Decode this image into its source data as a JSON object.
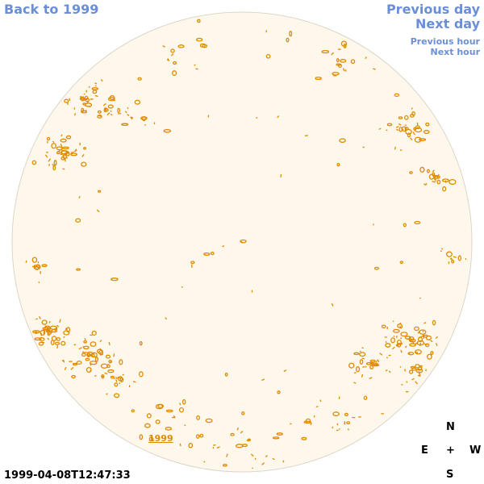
{
  "navigation": {
    "back_label": "Back to 1999",
    "previous_day_label": "Previous day",
    "next_day_label": "Next day",
    "previous_hour_label": "Previous hour",
    "next_hour_label": "Next hour"
  },
  "timestamp": "1999-04-08T12:47:33",
  "year_link": "1999",
  "compass": {
    "north": "N",
    "east": "E",
    "center": "+",
    "west": "W",
    "south": "S"
  },
  "colors": {
    "link": "#6a8fd8",
    "disk_fill": "#fef8ec",
    "disk_stroke": "#dcd6c8",
    "contour": "#e08a00"
  }
}
